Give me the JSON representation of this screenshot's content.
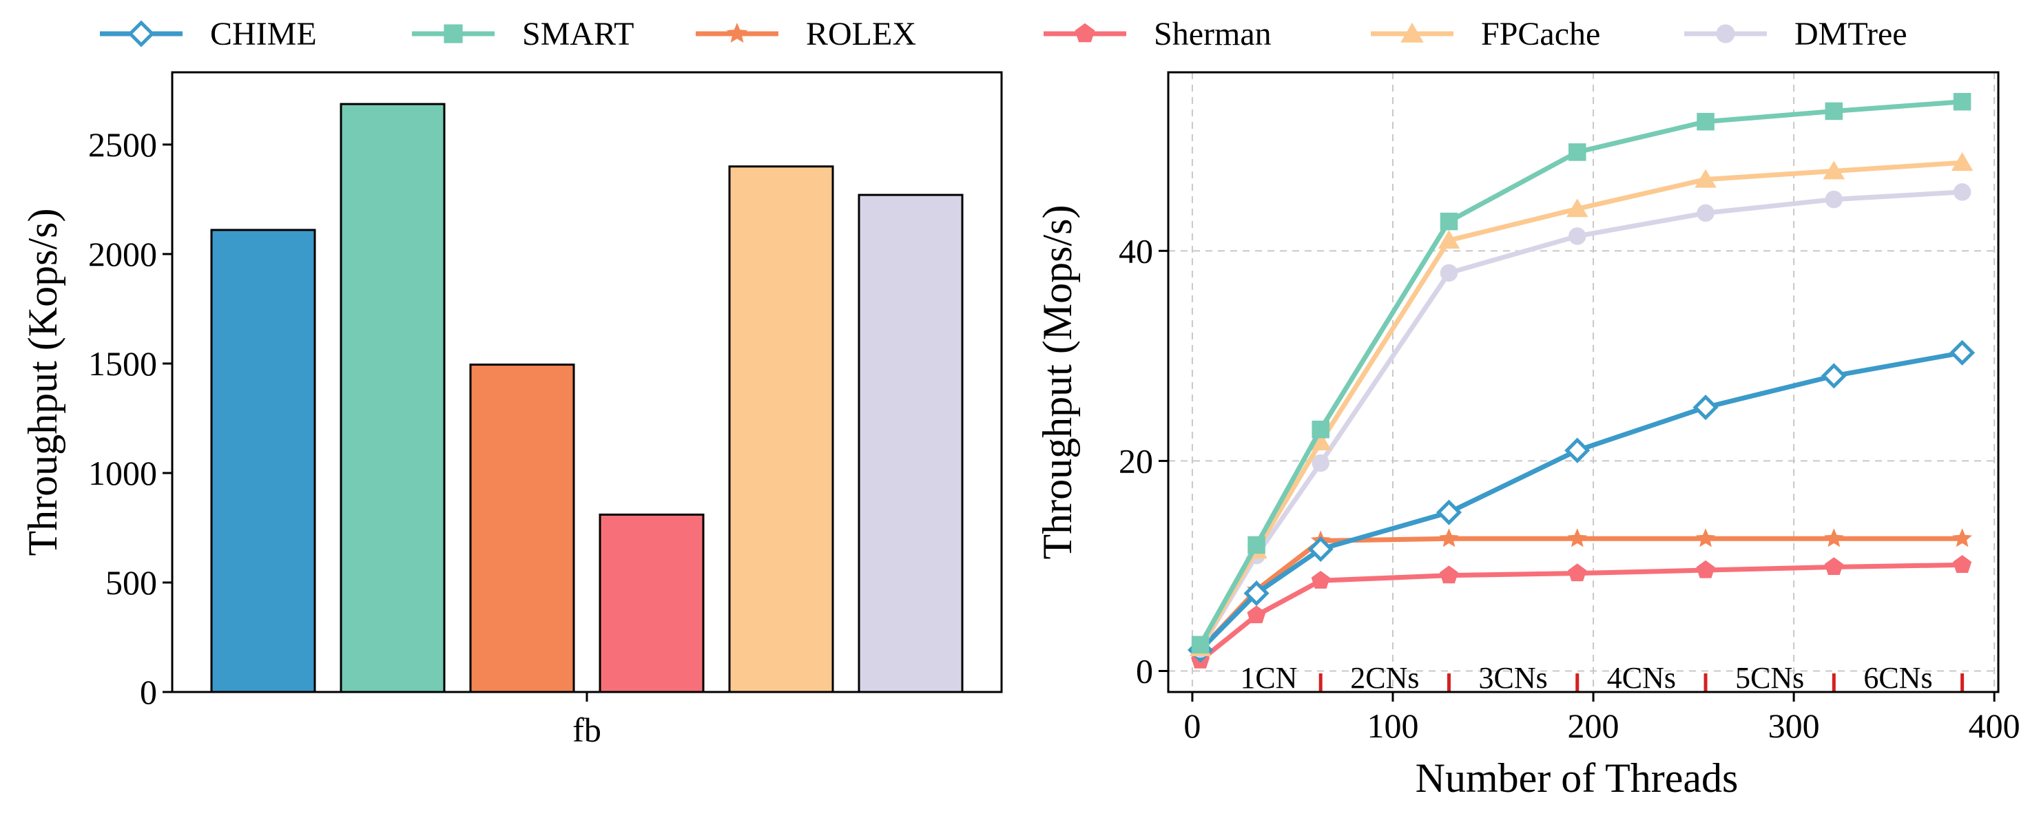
{
  "legend": [
    {
      "name": "CHIME",
      "color": "#3b9ac9",
      "marker": "diamond-open"
    },
    {
      "name": "SMART",
      "color": "#75cbb3",
      "marker": "square"
    },
    {
      "name": "ROLEX",
      "color": "#f48554",
      "marker": "star"
    },
    {
      "name": "Sherman",
      "color": "#f76f78",
      "marker": "pentagon"
    },
    {
      "name": "FPCache",
      "color": "#fcc990",
      "marker": "triangle"
    },
    {
      "name": "DMTree",
      "color": "#d8d4e8",
      "marker": "circle"
    }
  ],
  "chart_data": [
    {
      "type": "bar",
      "categories": [
        "fb"
      ],
      "series": [
        {
          "name": "CHIME",
          "values": [
            2110
          ]
        },
        {
          "name": "SMART",
          "values": [
            2685
          ]
        },
        {
          "name": "ROLEX",
          "values": [
            1495
          ]
        },
        {
          "name": "Sherman",
          "values": [
            810
          ]
        },
        {
          "name": "FPCache",
          "values": [
            2400
          ]
        },
        {
          "name": "DMTree",
          "values": [
            2270
          ]
        }
      ],
      "ylabel": "Throughput (Kops/s)",
      "xlabel": "",
      "ylim": [
        0,
        2830
      ],
      "yticks": [
        0,
        500,
        1000,
        1500,
        2000,
        2500
      ],
      "grid": false
    },
    {
      "type": "line",
      "x": [
        4,
        32,
        64,
        128,
        192,
        256,
        320,
        384
      ],
      "series": [
        {
          "name": "CHIME",
          "values": [
            2.0,
            7.4,
            11.6,
            15.1,
            21.0,
            25.1,
            28.1,
            30.3
          ]
        },
        {
          "name": "SMART",
          "values": [
            2.5,
            12.0,
            23.0,
            42.8,
            49.4,
            52.3,
            53.3,
            54.2
          ]
        },
        {
          "name": "ROLEX",
          "values": [
            2.0,
            7.7,
            12.4,
            12.6,
            12.6,
            12.6,
            12.6,
            12.6
          ]
        },
        {
          "name": "Sherman",
          "values": [
            1.0,
            5.3,
            8.6,
            9.1,
            9.3,
            9.6,
            9.9,
            10.1
          ]
        },
        {
          "name": "FPCache",
          "values": [
            2.2,
            11.5,
            21.8,
            41.0,
            44.0,
            46.8,
            47.6,
            48.4
          ]
        },
        {
          "name": "DMTree",
          "values": [
            2.1,
            11.0,
            19.8,
            37.9,
            41.4,
            43.6,
            44.9,
            45.6
          ]
        }
      ],
      "xlabel": "Number of Threads",
      "ylabel": "Throughput (Mops/s)",
      "xlim": [
        -12,
        402
      ],
      "ylim": [
        -2,
        57
      ],
      "xticks": [
        0,
        100,
        200,
        300,
        400
      ],
      "yticks": [
        0,
        20,
        40
      ],
      "grid": true,
      "annotations": [
        "1CN",
        "2CNs",
        "3CNs",
        "4CNs",
        "5CNs",
        "6CNs"
      ],
      "annotation_boundaries": [
        64,
        128,
        192,
        256,
        320,
        384
      ]
    }
  ]
}
